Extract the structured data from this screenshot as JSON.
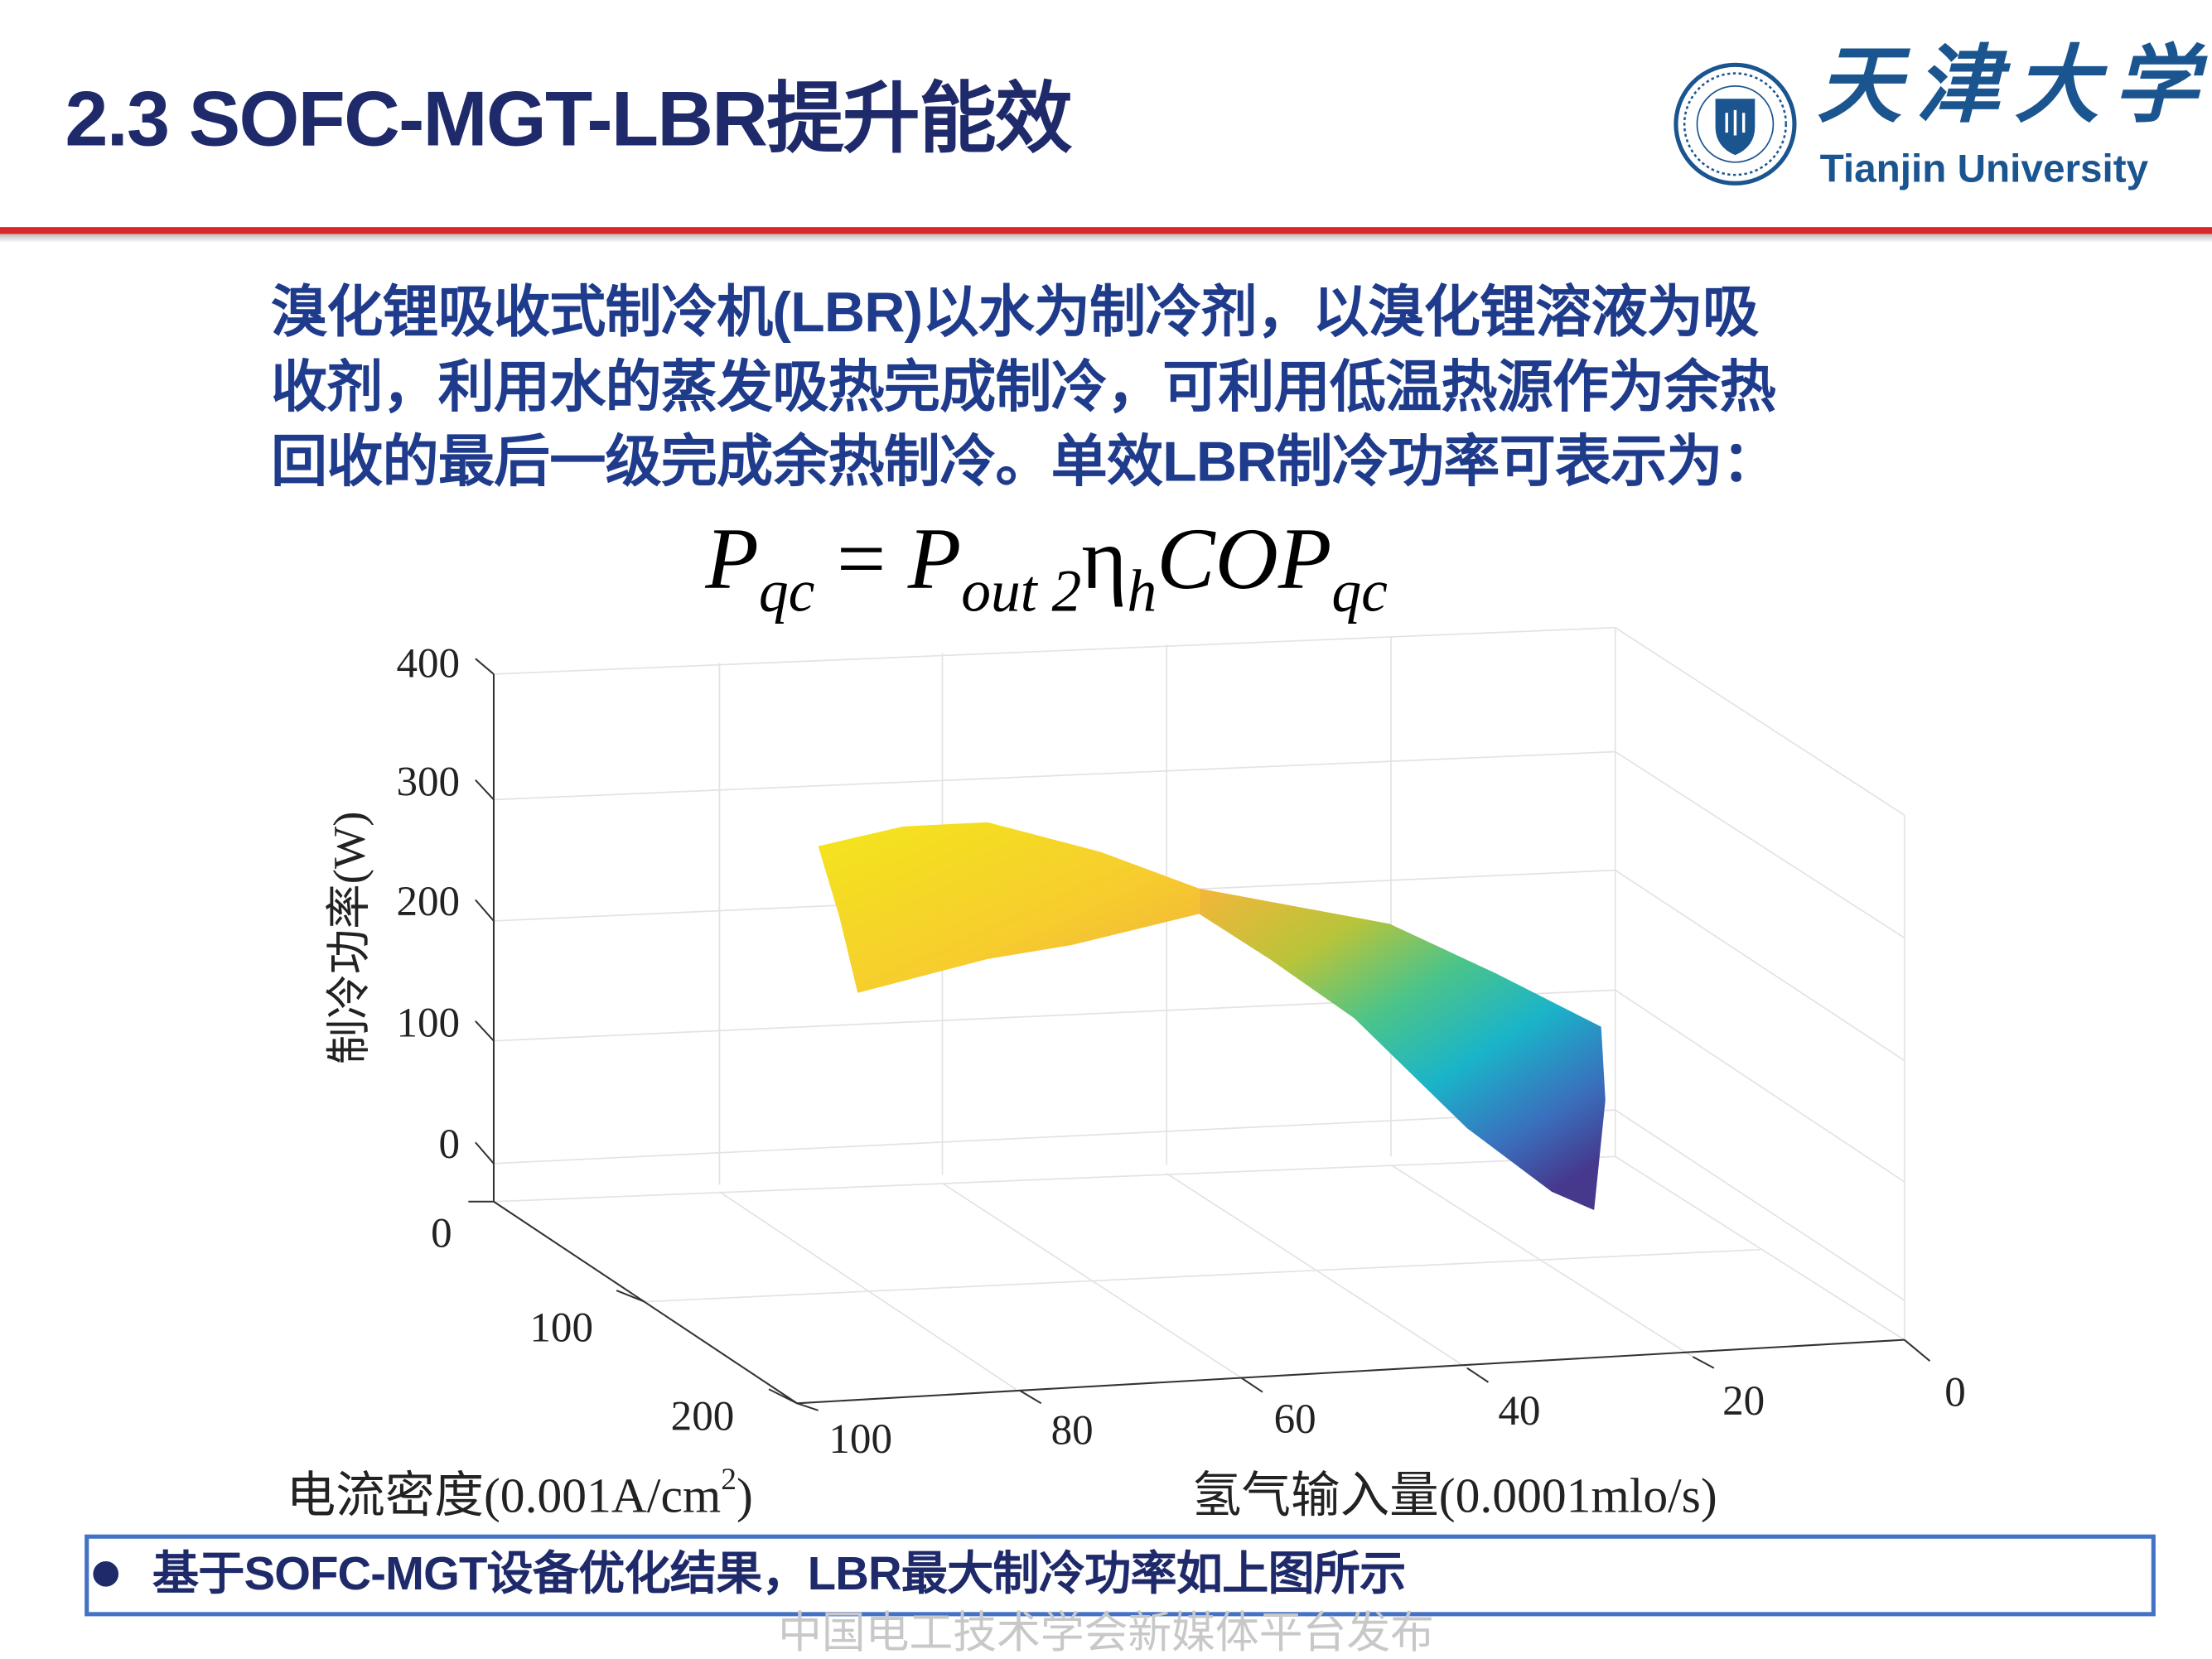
{
  "header": {
    "title": "2.3 SOFC-MGT-LBR提升能效",
    "logo": {
      "chinese": "天津大学",
      "english": "Tianjin University",
      "seal_text": "TIANJIN UNIVERSITY (PEIYANG UNIVERSITY) 1895"
    },
    "accent_line_color": "#d9262b"
  },
  "body": {
    "paragraph_lines": [
      "溴化锂吸收式制冷机(LBR)以水为制冷剂，以溴化锂溶液为吸",
      "收剂，利用水的蒸发吸热完成制冷，可利用低温热源作为余热",
      "回收的最后一级完成余热制冷。单效LBR制冷功率可表示为："
    ],
    "formula": {
      "lhs": "P",
      "lhs_sub": "qc",
      "eq": "=",
      "p": "P",
      "p_sub": "out 2",
      "eta": "η",
      "eta_sub": "h",
      "cop": "COP",
      "cop_sub": "qc"
    }
  },
  "chart_data": {
    "type": "surface",
    "zlabel": "制冷功率(W)",
    "xlabel": "电流密度(0.001A/cm²)",
    "xlabel_parts": {
      "main": "电流密度(0.001A/cm",
      "sup": "2",
      "end": ")"
    },
    "ylabel": "氢气输入量(0.0001mlo/s)",
    "z_ticks": [
      "400",
      "300",
      "200",
      "100",
      "0"
    ],
    "x_ticks": [
      "0",
      "100",
      "200"
    ],
    "y_ticks": [
      "100",
      "80",
      "60",
      "40",
      "20",
      "0"
    ],
    "zlim": [
      0,
      400
    ],
    "xlim": [
      0,
      200
    ],
    "ylim": [
      0,
      100
    ],
    "grid": true,
    "colormap": "parula",
    "surface_peak_approx_W": 250,
    "surface_min_approx_W": 0
  },
  "footer": {
    "summary": "基于SOFC-MGT设备优化结果，LBR最大制冷功率如上图所示",
    "watermark": "中国电工技术学会新媒体平台发布",
    "box_color": "#4472c4"
  }
}
